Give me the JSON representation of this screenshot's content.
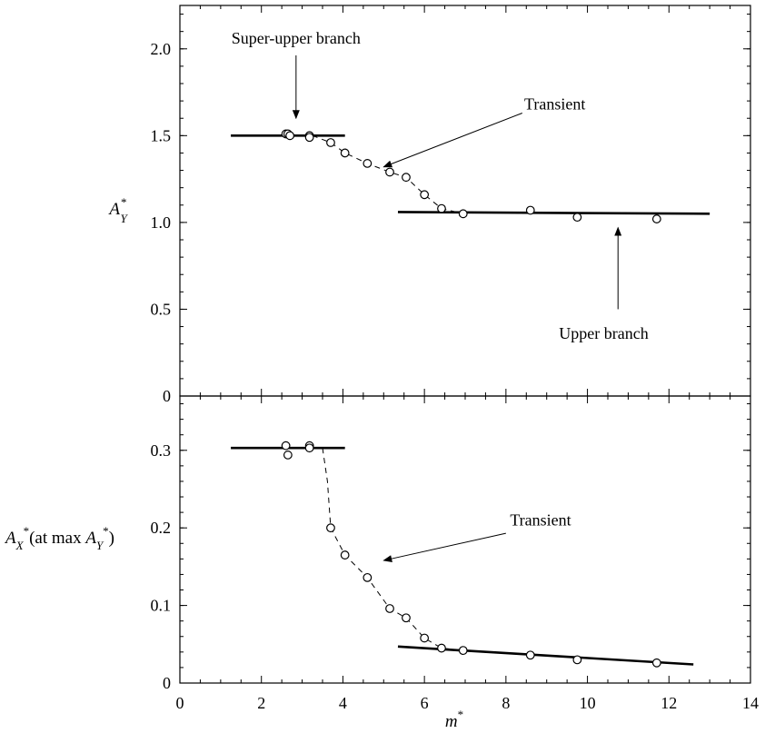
{
  "chart_data": [
    {
      "type": "scatter",
      "title": "",
      "xlabel": "",
      "ylabel": "A",
      "ylabel_sub": "Y",
      "ylabel_sup": "*",
      "xlim": [
        0,
        14
      ],
      "ylim": [
        0,
        2.25
      ],
      "yticks": [
        0,
        0.5,
        1.0,
        1.5,
        2.0
      ],
      "ytick_labels": [
        "0",
        "0.5",
        "1.0",
        "1.5",
        "2.0"
      ],
      "grid": false,
      "points": [
        {
          "x": 2.6,
          "y": 1.51
        },
        {
          "x": 2.65,
          "y": 1.51
        },
        {
          "x": 2.7,
          "y": 1.5
        },
        {
          "x": 3.18,
          "y": 1.5
        },
        {
          "x": 3.18,
          "y": 1.49
        },
        {
          "x": 3.7,
          "y": 1.46
        },
        {
          "x": 4.05,
          "y": 1.4
        },
        {
          "x": 4.6,
          "y": 1.34
        },
        {
          "x": 5.15,
          "y": 1.29
        },
        {
          "x": 5.55,
          "y": 1.26
        },
        {
          "x": 6.0,
          "y": 1.16
        },
        {
          "x": 6.42,
          "y": 1.08
        },
        {
          "x": 6.95,
          "y": 1.05
        },
        {
          "x": 8.6,
          "y": 1.07
        },
        {
          "x": 9.75,
          "y": 1.03
        },
        {
          "x": 11.7,
          "y": 1.02
        }
      ],
      "fit_lines": [
        {
          "x": [
            1.25,
            4.05
          ],
          "y": [
            1.5,
            1.5
          ]
        },
        {
          "x": [
            5.35,
            13.0
          ],
          "y": [
            1.06,
            1.05
          ]
        }
      ],
      "dashed_curve": {
        "x": [
          3.25,
          3.7,
          4.05,
          4.6,
          5.15,
          5.55,
          6.0,
          6.42,
          6.95
        ],
        "y": [
          1.5,
          1.46,
          1.4,
          1.34,
          1.29,
          1.26,
          1.16,
          1.08,
          1.05
        ]
      },
      "annotations": [
        {
          "text": "Super-upper branch",
          "x": 2.85,
          "y": 2.03,
          "arrow_to": [
            2.85,
            1.6
          ]
        },
        {
          "text": "Transient",
          "x": 9.2,
          "y": 1.65,
          "arrow_from": [
            8.4,
            1.63
          ],
          "arrow_to": [
            5.0,
            1.32
          ]
        },
        {
          "text": "Upper branch",
          "x": 10.4,
          "y": 0.33,
          "arrow_from": [
            10.75,
            0.5
          ],
          "arrow_to": [
            10.75,
            0.97
          ]
        }
      ]
    },
    {
      "type": "scatter",
      "title": "",
      "xlabel": "m",
      "xlabel_sup": "*",
      "ylabel_parts": {
        "a": "A",
        "a_sub": "X",
        "a_sup": "*",
        "mid": "(at max ",
        "b": "A",
        "b_sub": "Y",
        "b_sup": "*",
        "end": ")"
      },
      "xlim": [
        0,
        14
      ],
      "ylim": [
        0,
        0.37
      ],
      "xticks": [
        0,
        2,
        4,
        6,
        8,
        10,
        12,
        14
      ],
      "xtick_labels": [
        "0",
        "2",
        "4",
        "6",
        "8",
        "10",
        "12",
        "14"
      ],
      "yticks": [
        0,
        0.1,
        0.2,
        0.3
      ],
      "ytick_labels": [
        "0",
        "0.1",
        "0.2",
        "0.3"
      ],
      "grid": false,
      "points": [
        {
          "x": 2.6,
          "y": 0.306
        },
        {
          "x": 2.65,
          "y": 0.294
        },
        {
          "x": 3.18,
          "y": 0.306
        },
        {
          "x": 3.18,
          "y": 0.303
        },
        {
          "x": 3.7,
          "y": 0.2
        },
        {
          "x": 4.05,
          "y": 0.165
        },
        {
          "x": 4.6,
          "y": 0.136
        },
        {
          "x": 5.15,
          "y": 0.096
        },
        {
          "x": 5.55,
          "y": 0.084
        },
        {
          "x": 6.0,
          "y": 0.058
        },
        {
          "x": 6.42,
          "y": 0.045
        },
        {
          "x": 6.95,
          "y": 0.042
        },
        {
          "x": 8.6,
          "y": 0.036
        },
        {
          "x": 9.75,
          "y": 0.03
        },
        {
          "x": 11.7,
          "y": 0.026
        }
      ],
      "fit_lines": [
        {
          "x": [
            1.25,
            4.05
          ],
          "y": [
            0.303,
            0.303
          ]
        },
        {
          "x": [
            5.35,
            12.6
          ],
          "y": [
            0.047,
            0.024
          ]
        }
      ],
      "dashed_curve": {
        "x": [
          3.5,
          3.62,
          3.7,
          4.05,
          4.6,
          5.15,
          5.55,
          6.0,
          6.42,
          6.95
        ],
        "y": [
          0.303,
          0.26,
          0.2,
          0.165,
          0.136,
          0.096,
          0.084,
          0.058,
          0.045,
          0.042
        ]
      },
      "annotations": [
        {
          "text": "Transient",
          "x": 8.85,
          "y": 0.203,
          "arrow_from": [
            8.0,
            0.193
          ],
          "arrow_to": [
            5.0,
            0.158
          ]
        }
      ]
    }
  ]
}
